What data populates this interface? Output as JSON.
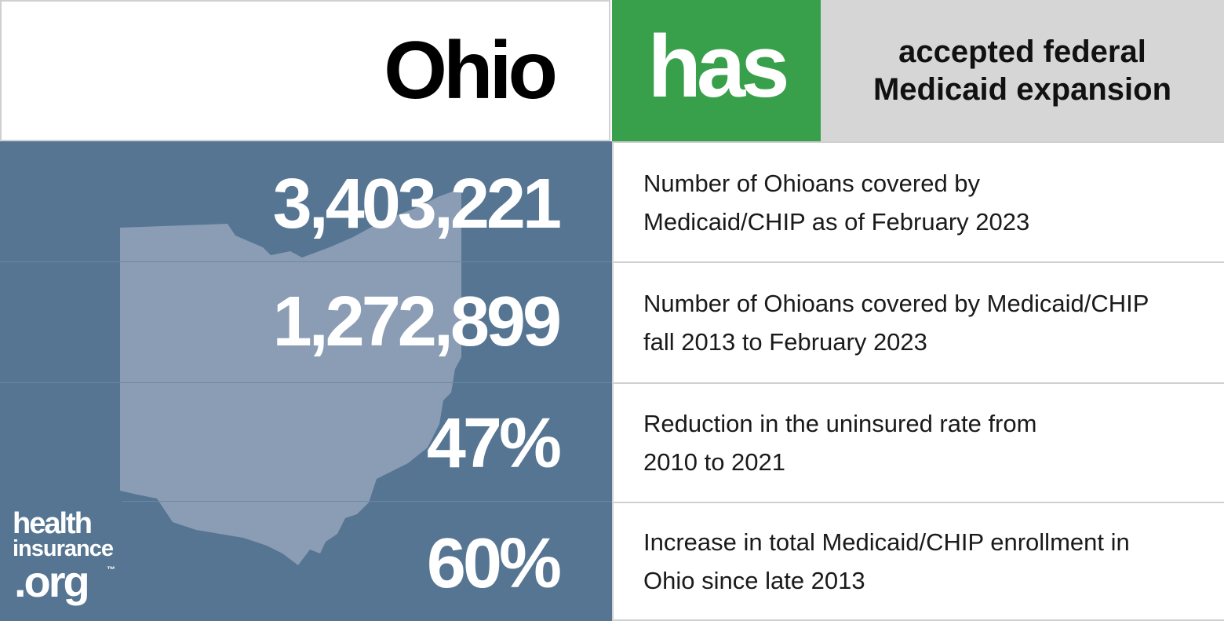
{
  "header": {
    "state": "Ohio",
    "status": "has",
    "description": [
      "accepted federal",
      "Medicaid expansion"
    ]
  },
  "stats": [
    {
      "value": "3,403,221",
      "description": [
        "Number of Ohioans covered by",
        "Medicaid/CHIP as of February 2023"
      ]
    },
    {
      "value": "1,272,899",
      "description": [
        "Number of Ohioans covered by Medicaid/CHIP",
        "fall 2013 to February 2023"
      ]
    },
    {
      "value": "47%",
      "description": [
        "Reduction in the uninsured rate from",
        "2010 to 2021"
      ]
    },
    {
      "value": "60%",
      "description": [
        "Increase in total Medicaid/CHIP enrollment in",
        "Ohio since late 2013"
      ]
    }
  ],
  "logo": {
    "line1": "health",
    "line2": "insurance",
    "line3": ".org",
    "mark": "™"
  }
}
